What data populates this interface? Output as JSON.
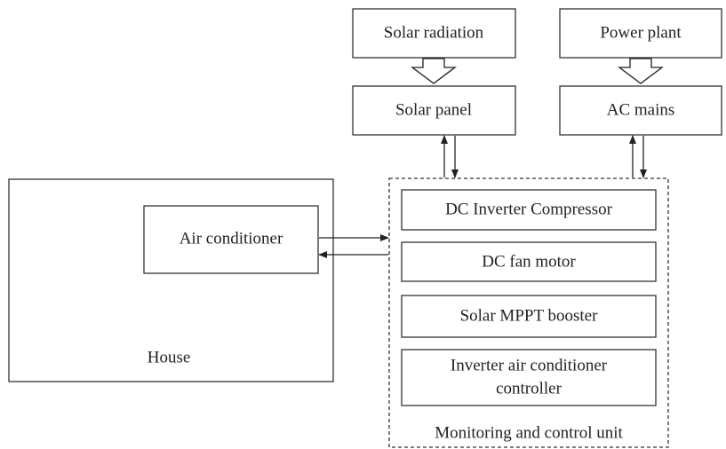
{
  "nodes": [
    {
      "label": "Solar radiation"
    },
    {
      "label": "Power plant"
    },
    {
      "label": "Solar panel"
    },
    {
      "label": "AC mains"
    },
    {
      "label": "Air conditioner"
    },
    {
      "label": "House"
    },
    {
      "label": "DC Inverter Compressor"
    },
    {
      "label": "DC fan motor"
    },
    {
      "label": "Solar MPPT booster"
    },
    {
      "label": [
        "Inverter air conditioner",
        "controller"
      ]
    },
    {
      "label": "Monitoring and control unit"
    }
  ]
}
